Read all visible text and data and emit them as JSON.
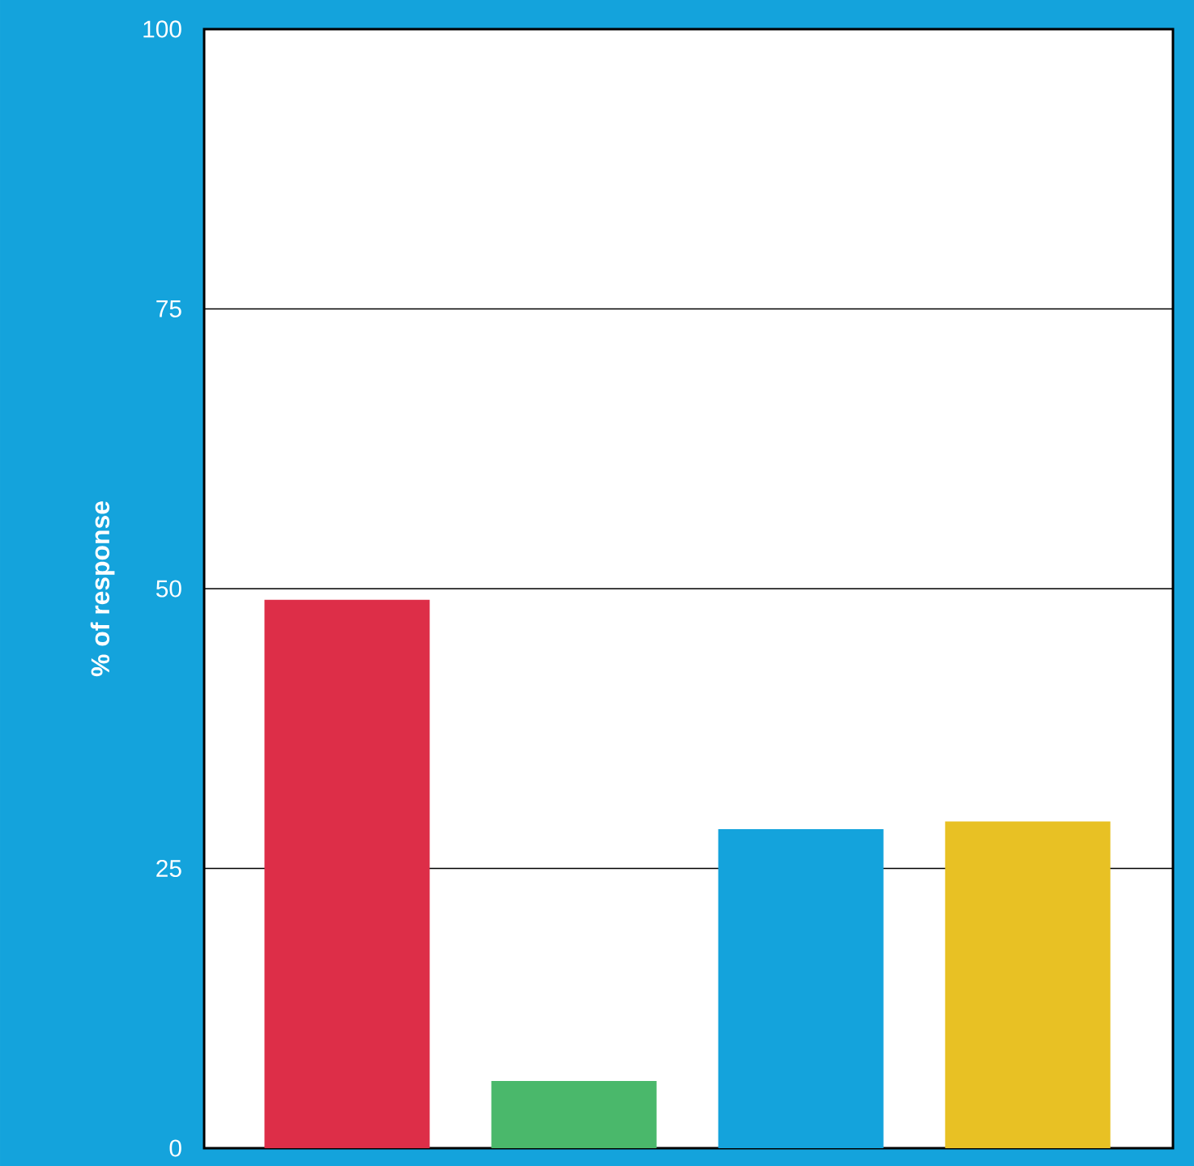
{
  "chart_data": {
    "type": "bar",
    "ylabel": "% of response",
    "categories": [
      null,
      null,
      null,
      null
    ],
    "values": [
      49,
      6,
      28.5,
      29.2
    ],
    "colors": [
      "#dd2e48",
      "#4ab86b",
      "#14a3dc",
      "#e8c124"
    ],
    "ylim": [
      0,
      100
    ],
    "yticks": [
      0,
      25,
      50,
      75,
      100
    ],
    "grid": "y"
  }
}
